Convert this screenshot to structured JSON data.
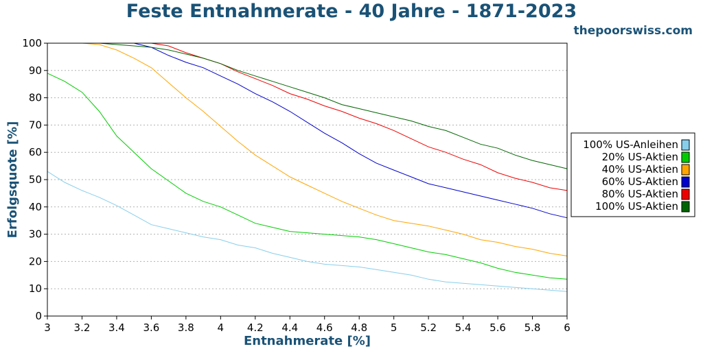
{
  "chart_data": {
    "type": "line",
    "title": "Feste Entnahmerate - 40 Jahre - 1871-2023",
    "subtitle": "thepoorswiss.com",
    "xlabel": "Entnahmerate [%]",
    "ylabel": "Erfolgsquote [%]",
    "xlim": [
      3,
      6
    ],
    "ylim": [
      0,
      100
    ],
    "xticks": [
      "3",
      "3.2",
      "3.4",
      "3.6",
      "3.8",
      "4",
      "4.2",
      "4.4",
      "4.6",
      "4.8",
      "5",
      "5.2",
      "5.4",
      "5.6",
      "5.8",
      "6"
    ],
    "yticks": [
      "0",
      "10",
      "20",
      "30",
      "40",
      "50",
      "60",
      "70",
      "80",
      "90",
      "100"
    ],
    "grid": true,
    "legend_position": "right",
    "x": [
      3.0,
      3.1,
      3.2,
      3.3,
      3.4,
      3.5,
      3.6,
      3.7,
      3.8,
      3.9,
      4.0,
      4.1,
      4.2,
      4.3,
      4.4,
      4.5,
      4.6,
      4.7,
      4.8,
      4.9,
      5.0,
      5.1,
      5.2,
      5.3,
      5.4,
      5.5,
      5.6,
      5.7,
      5.8,
      5.9,
      6.0
    ],
    "series": [
      {
        "name": "100% US-Anleihen",
        "color": "#87ceeb",
        "values": [
          53,
          49,
          46,
          43.5,
          40.5,
          37,
          33.5,
          32,
          30.5,
          29,
          28,
          26,
          25,
          23,
          21.5,
          20,
          19,
          18.5,
          18,
          17,
          16,
          15,
          13.5,
          12.5,
          12,
          11.5,
          11,
          10.5,
          10,
          9.5,
          9
        ]
      },
      {
        "name": "20% US-Aktien",
        "color": "#00cc00",
        "values": [
          89,
          86,
          82,
          75,
          66,
          60,
          54,
          49.5,
          45,
          42,
          40,
          37,
          34,
          32.5,
          31,
          30.5,
          30,
          29.5,
          29,
          28,
          26.5,
          25,
          23.5,
          22.5,
          21,
          19.5,
          17.5,
          16,
          15,
          14,
          13.5
        ]
      },
      {
        "name": "40% US-Aktien",
        "color": "#ffa500",
        "values": [
          100,
          100,
          100,
          99.5,
          97.5,
          94.5,
          91,
          85.5,
          80,
          75,
          69.5,
          64,
          59,
          55,
          51,
          48,
          45,
          42,
          39.5,
          37,
          35,
          34,
          33,
          31.5,
          30,
          28,
          27,
          25.5,
          24.5,
          23,
          22
        ]
      },
      {
        "name": "60% US-Aktien",
        "color": "#0000cc",
        "values": [
          100,
          100,
          100,
          100,
          100,
          100,
          98.5,
          95.5,
          93,
          91,
          88,
          85,
          81.5,
          78.5,
          75,
          71,
          67,
          63.5,
          59.5,
          56,
          53.5,
          51,
          48.5,
          47,
          45.5,
          44,
          42.5,
          41,
          39.5,
          37.5,
          36
        ]
      },
      {
        "name": "80% US-Aktien",
        "color": "#ee0000",
        "values": [
          100,
          100,
          100,
          100,
          100,
          100,
          100,
          99,
          96.5,
          94.5,
          92.5,
          89.5,
          87,
          84.5,
          81.5,
          79.5,
          77,
          75,
          72.5,
          70.5,
          68,
          65,
          62,
          60,
          57.5,
          55.5,
          52.5,
          50.5,
          49,
          47,
          46
        ]
      },
      {
        "name": "100% US-Aktien",
        "color": "#006400",
        "values": [
          100,
          100,
          100,
          100,
          99.5,
          99,
          98.5,
          97.5,
          96,
          94.5,
          92.5,
          90,
          88,
          86,
          84,
          82,
          80,
          77.5,
          76,
          74.5,
          73,
          71.5,
          69.5,
          68,
          65.5,
          63,
          61.5,
          59,
          57,
          55.5,
          54
        ]
      }
    ]
  }
}
